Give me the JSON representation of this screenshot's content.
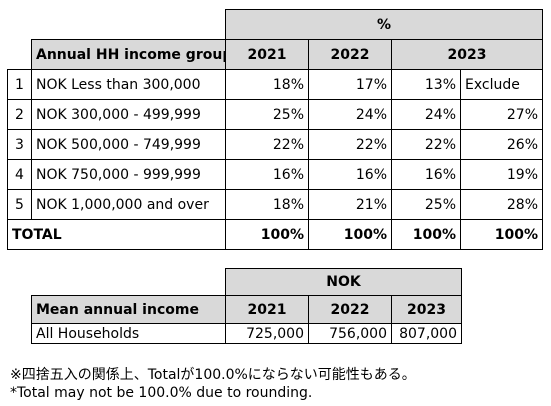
{
  "table1": {
    "unit_header": "%",
    "group_header": "Annual HH income group",
    "years": [
      "2021",
      "2022",
      "2023"
    ],
    "rows": [
      {
        "num": "1",
        "label": "NOK Less than 300,000",
        "v2021": "18%",
        "v2022": "17%",
        "v2023a": "13%",
        "v2023b": "Exclude"
      },
      {
        "num": "2",
        "label": "NOK 300,000 - 499,999",
        "v2021": "25%",
        "v2022": "24%",
        "v2023a": "24%",
        "v2023b": "27%"
      },
      {
        "num": "3",
        "label": "NOK 500,000 - 749,999",
        "v2021": "22%",
        "v2022": "22%",
        "v2023a": "22%",
        "v2023b": "26%"
      },
      {
        "num": "4",
        "label": "NOK 750,000 - 999,999",
        "v2021": "16%",
        "v2022": "16%",
        "v2023a": "16%",
        "v2023b": "19%"
      },
      {
        "num": "5",
        "label": "NOK 1,000,000 and over",
        "v2021": "18%",
        "v2022": "21%",
        "v2023a": "25%",
        "v2023b": "28%"
      }
    ],
    "total": {
      "label": "TOTAL",
      "v2021": "100%",
      "v2022": "100%",
      "v2023a": "100%",
      "v2023b": "100%"
    }
  },
  "table2": {
    "unit_header": "NOK",
    "row_header": "Mean annual income",
    "years": [
      "2021",
      "2022",
      "2023"
    ],
    "row": {
      "label": "All Households",
      "v2021": "725,000",
      "v2022": "756,000",
      "v2023": "807,000"
    }
  },
  "notes": {
    "jp": "※四捨五入の関係上、Totalが100.0%にならない可能性もある。",
    "en": "*Total may not be 100.0% due to rounding."
  }
}
